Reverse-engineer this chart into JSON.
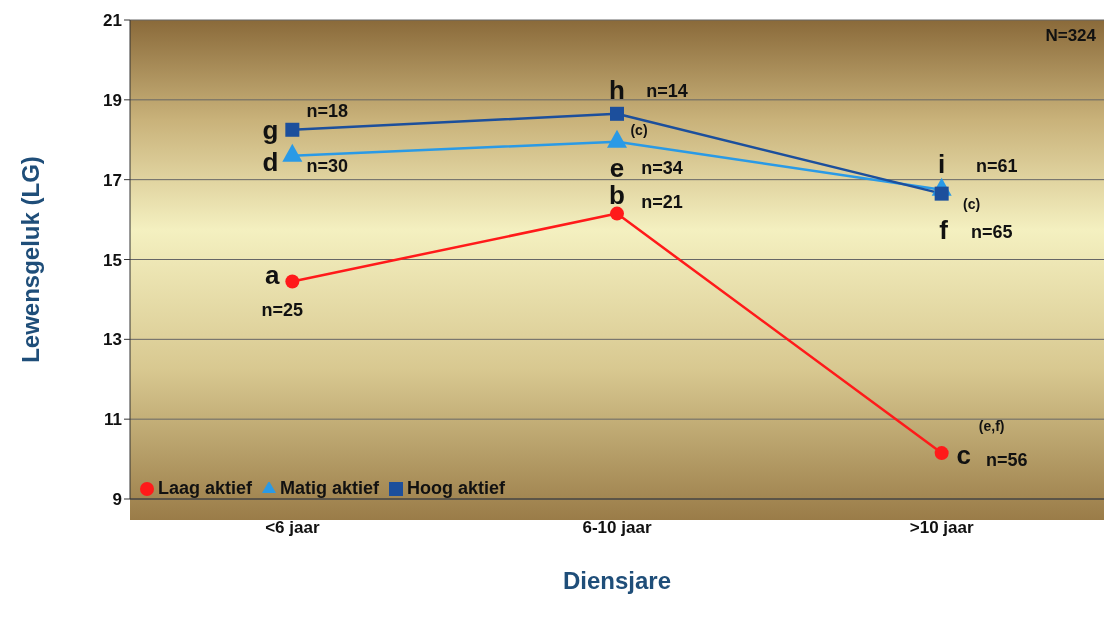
{
  "chart_data": {
    "type": "line",
    "xlabel": "Diensjare",
    "ylabel": "Lewensgeluk (LG)",
    "categories": [
      "<6 jaar",
      "6-10 jaar",
      ">10 jaar"
    ],
    "series": [
      {
        "name": "Laag aktief",
        "color": "#ff1a1a",
        "marker": "circle",
        "values": [
          14.45,
          16.15,
          10.15
        ]
      },
      {
        "name": "Matig aktief",
        "color": "#2a9ae6",
        "marker": "triangle",
        "values": [
          17.6,
          17.95,
          16.75
        ]
      },
      {
        "name": "Hoog aktief",
        "color": "#1c4f9c",
        "marker": "square",
        "values": [
          18.25,
          18.65,
          16.65
        ]
      }
    ],
    "ylim": [
      9,
      21
    ],
    "yticks": [
      9,
      11,
      13,
      15,
      17,
      19,
      21
    ],
    "grid": "y",
    "legend": "bottom left",
    "line_style": "solid",
    "annotations": [
      "N=324",
      {
        "text": "a",
        "x": "<6 jaar",
        "y": 14.45
      },
      {
        "text": "n=25",
        "x": "<6 jaar",
        "y": 14.45
      },
      {
        "text": "g",
        "x": "<6 jaar",
        "y": 18.25
      },
      {
        "text": "n=18",
        "x": "<6 jaar",
        "y": 18.25
      },
      {
        "text": "d",
        "x": "<6 jaar",
        "y": 17.6
      },
      {
        "text": "n=30",
        "x": "<6 jaar",
        "y": 17.6
      },
      {
        "text": "h",
        "x": "6-10 jaar",
        "y": 18.65
      },
      {
        "text": "n=14",
        "x": "6-10 jaar",
        "y": 18.65
      },
      {
        "text": "(c)",
        "x": "6-10 jaar",
        "y": 17.95
      },
      {
        "text": "e",
        "x": "6-10 jaar",
        "y": 17.95
      },
      {
        "text": "n=34",
        "x": "6-10 jaar",
        "y": 17.95
      },
      {
        "text": "b",
        "x": "6-10 jaar",
        "y": 16.15
      },
      {
        "text": "n=21",
        "x": "6-10 jaar",
        "y": 16.15
      },
      {
        "text": "i",
        "x": ">10 jaar",
        "y": 16.75
      },
      {
        "text": "n=61",
        "x": ">10 jaar",
        "y": 16.75
      },
      {
        "text": "(c)",
        "x": ">10 jaar",
        "y": 16.65
      },
      {
        "text": "f",
        "x": ">10 jaar",
        "y": 16.65
      },
      {
        "text": "n=65",
        "x": ">10 jaar",
        "y": 16.65
      },
      {
        "text": "(e,f)",
        "x": ">10 jaar",
        "y": 10.15
      },
      {
        "text": "c",
        "x": ">10 jaar",
        "y": 10.15
      },
      {
        "text": "n=56",
        "x": ">10 jaar",
        "y": 10.15
      }
    ]
  }
}
